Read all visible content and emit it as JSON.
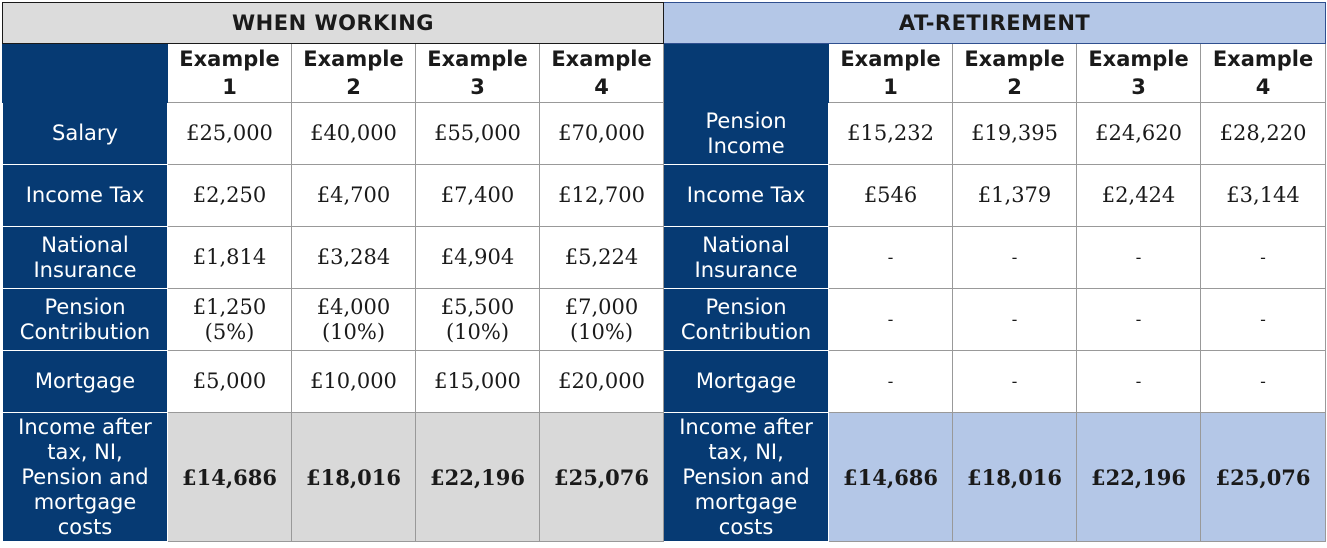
{
  "headers": {
    "working": "WHEN WORKING",
    "retirement": "AT-RETIREMENT"
  },
  "examples": [
    {
      "word": "Example",
      "num": "1"
    },
    {
      "word": "Example",
      "num": "2"
    },
    {
      "word": "Example",
      "num": "3"
    },
    {
      "word": "Example",
      "num": "4"
    }
  ],
  "working": {
    "rows": [
      {
        "label_lines": [
          "Salary"
        ],
        "values": [
          [
            "£25,000"
          ],
          [
            "£40,000"
          ],
          [
            "£55,000"
          ],
          [
            "£70,000"
          ]
        ]
      },
      {
        "label_lines": [
          "Income Tax"
        ],
        "values": [
          [
            "£2,250"
          ],
          [
            "£4,700"
          ],
          [
            "£7,400"
          ],
          [
            "£12,700"
          ]
        ]
      },
      {
        "label_lines": [
          "National",
          "Insurance"
        ],
        "values": [
          [
            "£1,814"
          ],
          [
            "£3,284"
          ],
          [
            "£4,904"
          ],
          [
            "£5,224"
          ]
        ]
      },
      {
        "label_lines": [
          "Pension",
          "Contribution"
        ],
        "values": [
          [
            "£1,250",
            "(5%)"
          ],
          [
            "£4,000",
            "(10%)"
          ],
          [
            "£5,500",
            "(10%)"
          ],
          [
            "£7,000",
            "(10%)"
          ]
        ]
      },
      {
        "label_lines": [
          "Mortgage"
        ],
        "values": [
          [
            "£5,000"
          ],
          [
            "£10,000"
          ],
          [
            "£15,000"
          ],
          [
            "£20,000"
          ]
        ]
      },
      {
        "label_lines": [
          "Income after",
          "tax, NI,",
          "Pension and",
          "mortgage",
          "costs"
        ],
        "values": [
          [
            "£14,686"
          ],
          [
            "£18,016"
          ],
          [
            "£22,196"
          ],
          [
            "£25,076"
          ]
        ]
      }
    ]
  },
  "retirement": {
    "rows": [
      {
        "label_lines": [
          "Pension",
          "Income"
        ],
        "values": [
          [
            "£15,232"
          ],
          [
            "£19,395"
          ],
          [
            "£24,620"
          ],
          [
            "£28,220"
          ]
        ]
      },
      {
        "label_lines": [
          "Income Tax"
        ],
        "values": [
          [
            "£546"
          ],
          [
            "£1,379"
          ],
          [
            "£2,424"
          ],
          [
            "£3,144"
          ]
        ]
      },
      {
        "label_lines": [
          "National",
          "Insurance"
        ],
        "values": [
          [
            "-"
          ],
          [
            "-"
          ],
          [
            "-"
          ],
          [
            "-"
          ]
        ]
      },
      {
        "label_lines": [
          "Pension",
          "Contribution"
        ],
        "values": [
          [
            "-"
          ],
          [
            "-"
          ],
          [
            "-"
          ],
          [
            "-"
          ]
        ]
      },
      {
        "label_lines": [
          "Mortgage"
        ],
        "values": [
          [
            "-"
          ],
          [
            "-"
          ],
          [
            "-"
          ],
          [
            "-"
          ]
        ]
      },
      {
        "label_lines": [
          "Income after",
          "tax, NI,",
          "Pension and",
          "mortgage",
          "costs"
        ],
        "values": [
          [
            "£14,686"
          ],
          [
            "£18,016"
          ],
          [
            "£22,196"
          ],
          [
            "£25,076"
          ]
        ]
      }
    ]
  },
  "colors": {
    "navy": "#063a73",
    "working_header": "#dcdcdc",
    "retirement_header": "#b4c7e7",
    "total_working": "#d9d9d9",
    "total_retirement": "#b4c7e7"
  }
}
